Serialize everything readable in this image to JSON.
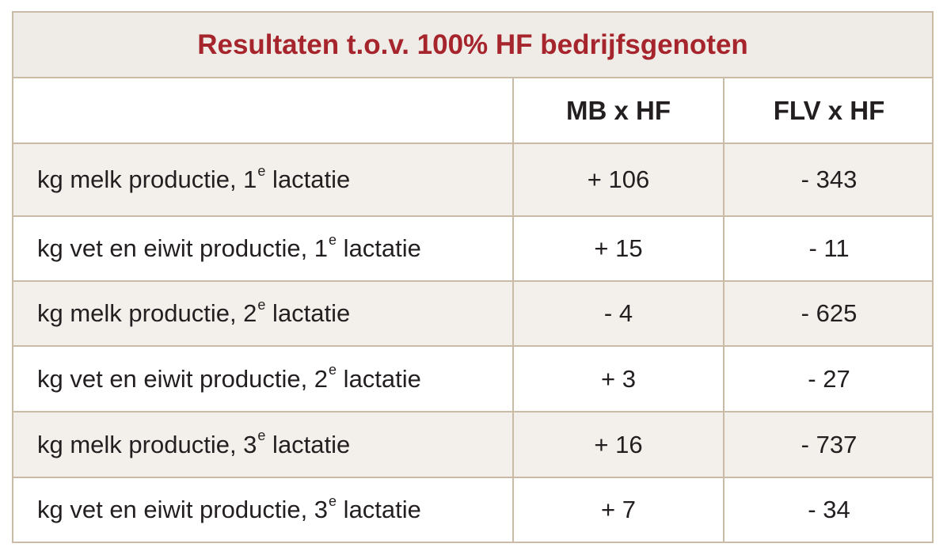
{
  "title": "Resultaten t.o.v. 100% HF bedrijfsgenoten",
  "headers": [
    "",
    "MB x HF",
    "FLV x HF"
  ],
  "rows": [
    {
      "label_pre": "kg melk productie, 1",
      "label_sup": "e",
      "label_post": " lactatie",
      "mb": "+ 106",
      "flv": "- 343"
    },
    {
      "label_pre": "kg vet en eiwit productie, 1",
      "label_sup": "e",
      "label_post": " lactatie",
      "mb": "+ 15",
      "flv": "- 11"
    },
    {
      "label_pre": "kg melk productie, 2",
      "label_sup": "e",
      "label_post": " lactatie",
      "mb": "- 4",
      "flv": "- 625"
    },
    {
      "label_pre": "kg vet en eiwit productie, 2",
      "label_sup": "e",
      "label_post": " lactatie",
      "mb": "+ 3",
      "flv": "- 27"
    },
    {
      "label_pre": "kg melk productie, 3",
      "label_sup": "e",
      "label_post": " lactatie",
      "mb": "+ 16",
      "flv": "- 737"
    },
    {
      "label_pre": "kg vet en eiwit productie, 3",
      "label_sup": "e",
      "label_post": " lactatie",
      "mb": "+ 7",
      "flv": "- 34"
    }
  ],
  "colors": {
    "title": "#a6242c",
    "border": "#c9bba6",
    "shade": "#f3f0ec",
    "header_bg": "#efebe6",
    "text": "#231f20"
  }
}
